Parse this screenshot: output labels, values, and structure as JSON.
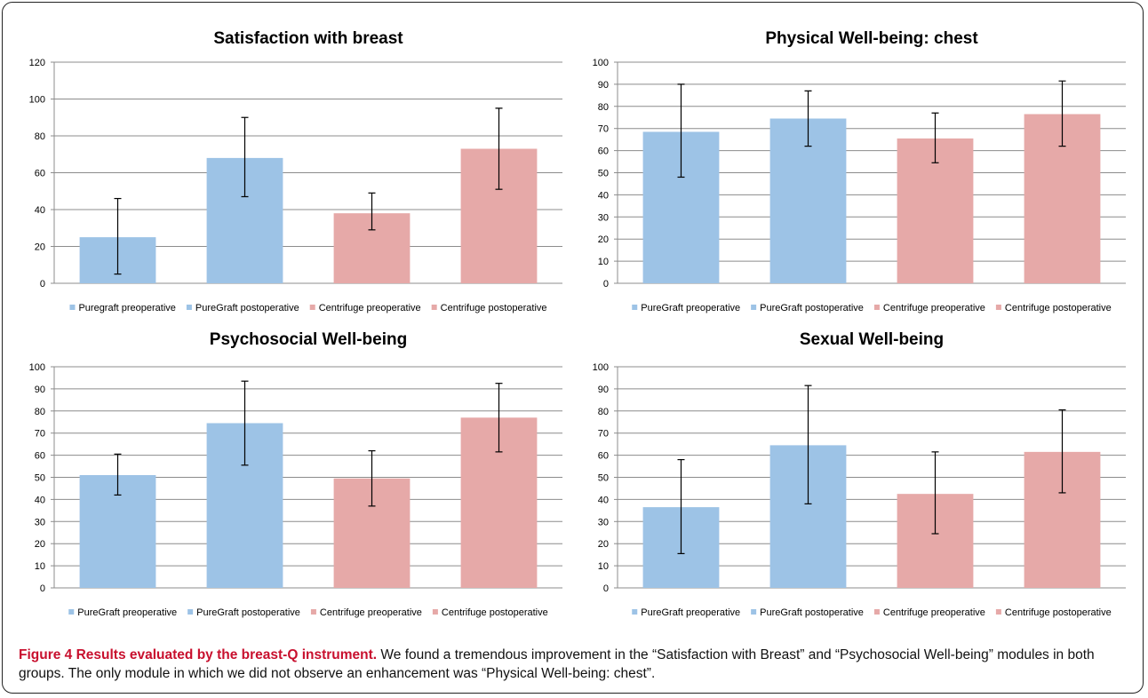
{
  "chart_data": [
    {
      "type": "bar",
      "title": "Satisfaction with breast",
      "categories": [
        "Puregraft preoperative",
        "PureGraft postoperative",
        "Centrifuge preoperative",
        "Centrifuge postoperative"
      ],
      "values": [
        25,
        68,
        38,
        73
      ],
      "error_low": [
        5,
        47,
        29,
        51
      ],
      "error_high": [
        46,
        90,
        49,
        95
      ],
      "colors": [
        "#9dc3e6",
        "#9dc3e6",
        "#e6a9a8",
        "#e6a9a8"
      ],
      "yticks": [
        "0",
        "20",
        "40",
        "60",
        "80",
        "100",
        "120"
      ],
      "ylim": [
        0,
        120
      ],
      "grid": true,
      "legend_position": "bottom"
    },
    {
      "type": "bar",
      "title": "Physical Well-being: chest",
      "categories": [
        "PureGraft preoperative",
        "PureGraft postoperative",
        "Centrifuge preoperative",
        "Centrifuge postoperative"
      ],
      "values": [
        68.5,
        74.5,
        65.5,
        76.5
      ],
      "error_low": [
        48,
        62,
        54.5,
        62
      ],
      "error_high": [
        90,
        87,
        77,
        91.5
      ],
      "colors": [
        "#9dc3e6",
        "#9dc3e6",
        "#e6a9a8",
        "#e6a9a8"
      ],
      "yticks": [
        "0",
        "10",
        "20",
        "30",
        "40",
        "50",
        "60",
        "70",
        "80",
        "90",
        "100"
      ],
      "ylim": [
        0,
        100
      ],
      "grid": true,
      "legend_position": "bottom"
    },
    {
      "type": "bar",
      "title": "Psychosocial Well-being",
      "categories": [
        "PureGraft preoperative",
        "PureGraft postoperative",
        "Centrifuge preoperative",
        "Centrifuge postoperative"
      ],
      "values": [
        51,
        74.5,
        49.5,
        77
      ],
      "error_low": [
        42,
        55.5,
        37,
        61.5
      ],
      "error_high": [
        60.5,
        93.5,
        62,
        92.5
      ],
      "colors": [
        "#9dc3e6",
        "#9dc3e6",
        "#e6a9a8",
        "#e6a9a8"
      ],
      "yticks": [
        "0",
        "10",
        "20",
        "30",
        "40",
        "50",
        "60",
        "70",
        "80",
        "90",
        "100"
      ],
      "ylim": [
        0,
        100
      ],
      "grid": true,
      "legend_position": "bottom"
    },
    {
      "type": "bar",
      "title": "Sexual Well-being",
      "categories": [
        "PureGraft preoperative",
        "PureGraft postoperative",
        "Centrifuge preoperative",
        "Centrifuge postoperative"
      ],
      "values": [
        36.5,
        64.5,
        42.5,
        61.5
      ],
      "error_low": [
        15.5,
        38,
        24.5,
        43
      ],
      "error_high": [
        58,
        91.5,
        61.5,
        80.5
      ],
      "colors": [
        "#9dc3e6",
        "#9dc3e6",
        "#e6a9a8",
        "#e6a9a8"
      ],
      "yticks": [
        "0",
        "10",
        "20",
        "30",
        "40",
        "50",
        "60",
        "70",
        "80",
        "90",
        "100"
      ],
      "ylim": [
        0,
        100
      ],
      "grid": true,
      "legend_position": "bottom"
    }
  ],
  "caption": {
    "title": "Figure 4 Results evaluated by the breast-Q instrument.",
    "text": " We found a tremendous improvement in the “Satisfaction with Breast” and “Psychosocial Well-being” modules in both groups. The only module in which we did not observe an enhancement was “Physical Well-being: chest”."
  }
}
